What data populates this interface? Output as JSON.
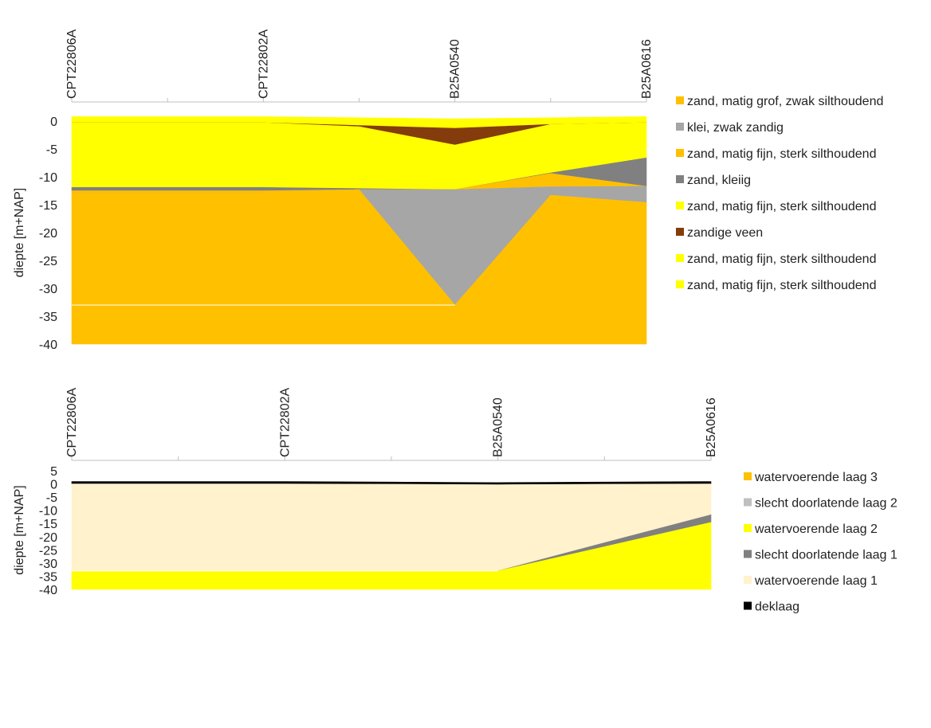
{
  "chart_data": [
    {
      "type": "area",
      "title": "",
      "ylabel": "diepte [m+NAP]",
      "ylim": [
        -40,
        0
      ],
      "yticks": [
        0,
        -5,
        -10,
        -15,
        -20,
        -25,
        -30,
        -35,
        -40
      ],
      "x": [
        0,
        1,
        2,
        3,
        4,
        5,
        6
      ],
      "x_labels": [
        {
          "x": 0,
          "label": "CPT22806A"
        },
        {
          "x": 2,
          "label": "CPT22802A"
        },
        {
          "x": 4,
          "label": "B25A0540"
        },
        {
          "x": 6,
          "label": "B25A0616"
        }
      ],
      "grid": false,
      "legend_position": "right",
      "legend": [
        {
          "label": "zand, matig grof, zwak silthoudend",
          "color": "#FFC000"
        },
        {
          "label": "klei, zwak zandig",
          "color": "#A6A6A6"
        },
        {
          "label": "zand, matig fijn, sterk silthoudend",
          "color": "#FFC000"
        },
        {
          "label": "zand, kleiig",
          "color": "#808080"
        },
        {
          "label": "zand, matig fijn, sterk silthoudend",
          "color": "#FFFF00"
        },
        {
          "label": "zandige veen",
          "color": "#843C0C"
        },
        {
          "label": "zand, matig fijn, sterk silthoudend",
          "color": "#FFFF00"
        },
        {
          "label": "zand, matig fijn, sterk silthoudend",
          "color": "#FFFF00"
        }
      ],
      "layers": [
        {
          "color": "#FFFF00",
          "top": [
            0.8,
            0.8,
            0.8,
            0.6,
            0.4,
            0.6,
            0.8
          ],
          "bottom": [
            -0.3,
            -0.3,
            -0.3,
            -0.8,
            -1.3,
            -0.6,
            -0.3
          ]
        },
        {
          "color": "#843C0C",
          "top": [
            -0.3,
            -0.3,
            -0.3,
            -0.8,
            -1.3,
            -0.6,
            -0.3
          ],
          "bottom": [
            -0.3,
            -0.3,
            -0.3,
            -1.0,
            -4.3,
            -0.6,
            -0.3
          ]
        },
        {
          "color": "#FFFF00",
          "top": [
            -0.3,
            -0.3,
            -0.3,
            -1.0,
            -4.3,
            -0.6,
            -0.3
          ],
          "bottom": [
            -11.9,
            -11.9,
            -11.9,
            -12.1,
            -12.3,
            -9.3,
            -6.6
          ]
        },
        {
          "color": "#808080",
          "top": [
            -11.9,
            -11.9,
            -11.9,
            -12.1,
            -12.3,
            -9.3,
            -6.6
          ],
          "bottom": [
            -12.5,
            -12.5,
            -12.5,
            -12.3,
            -12.3,
            -9.4,
            -11.7
          ]
        },
        {
          "color": "#FFC000",
          "top": [
            -12.5,
            -12.5,
            -12.5,
            -12.3,
            -12.3,
            -9.4,
            -11.7
          ],
          "bottom": [
            -12.8,
            -12.8,
            -12.8,
            -12.3,
            -12.3,
            -11.8,
            -11.7
          ]
        },
        {
          "color": "#A6A6A6",
          "top": [
            -12.8,
            -12.8,
            -12.8,
            -12.3,
            -12.3,
            -11.8,
            -11.7
          ],
          "bottom": [
            -12.8,
            -12.8,
            -12.8,
            -12.3,
            -33.0,
            -13.3,
            -14.6
          ]
        },
        {
          "color": "#FFC000",
          "top": [
            -12.8,
            -12.8,
            -12.8,
            -12.3,
            -33.0,
            -13.3,
            -14.6
          ],
          "bottom": [
            -40,
            -40,
            -40,
            -40,
            -40,
            -40,
            -40
          ]
        }
      ],
      "boundary_lines": [
        {
          "color": "#FFFFFF",
          "values": [
            -33.0,
            -33.0,
            -33.0,
            -33.0,
            -33.0,
            null,
            null
          ]
        }
      ]
    },
    {
      "type": "area",
      "title": "",
      "ylabel": "diepte [m+NAP]",
      "ylim": [
        -40,
        5
      ],
      "yticks": [
        5,
        0,
        -5,
        -10,
        -15,
        -20,
        -25,
        -30,
        -35,
        -40
      ],
      "x": [
        0,
        1,
        2,
        3,
        4,
        5,
        6
      ],
      "x_labels": [
        {
          "x": 0,
          "label": "CPT22806A"
        },
        {
          "x": 2,
          "label": "CPT22802A"
        },
        {
          "x": 4,
          "label": "B25A0540"
        },
        {
          "x": 6,
          "label": "B25A0616"
        }
      ],
      "grid": false,
      "legend_position": "right",
      "legend": [
        {
          "label": "watervoerende laag 3",
          "color": "#FFC000"
        },
        {
          "label": "slecht doorlatende laag 2",
          "color": "#BFBFBF"
        },
        {
          "label": "watervoerende laag 2",
          "color": "#FFFF00"
        },
        {
          "label": "slecht doorlatende laag 1",
          "color": "#808080"
        },
        {
          "label": "watervoerende laag 1",
          "color": "#FFF2CC"
        },
        {
          "label": "deklaag",
          "color": "#000000"
        }
      ],
      "layers": [
        {
          "color": "#000000",
          "top": [
            0.9,
            0.9,
            0.9,
            0.7,
            0.5,
            0.7,
            0.9
          ],
          "bottom": [
            0,
            0,
            0,
            -0.1,
            -0.3,
            -0.1,
            0
          ]
        },
        {
          "color": "#FFF2CC",
          "top": [
            0,
            0,
            0,
            -0.1,
            -0.3,
            -0.1,
            0
          ],
          "bottom": [
            -33.0,
            -33.0,
            -33.0,
            -33.0,
            -33.0,
            -22.3,
            -11.7
          ]
        },
        {
          "color": "#808080",
          "top": [
            -33.0,
            -33.0,
            -33.0,
            -33.0,
            -33.0,
            -22.3,
            -11.7
          ],
          "bottom": [
            -33.0,
            -33.0,
            -33.0,
            -33.0,
            -33.0,
            -23.8,
            -14.6
          ]
        },
        {
          "color": "#FFFF00",
          "top": [
            -33.0,
            -33.0,
            -33.0,
            -33.0,
            -33.0,
            -23.8,
            -14.6
          ],
          "bottom": [
            -40,
            -40,
            -40,
            -40,
            -40,
            -40,
            -40
          ]
        }
      ],
      "boundary_lines": [
        {
          "color": "#FFFFFF",
          "values": [
            -33.0,
            -33.0,
            -33.0,
            -33.0,
            -33.0,
            null,
            null
          ]
        }
      ]
    }
  ]
}
